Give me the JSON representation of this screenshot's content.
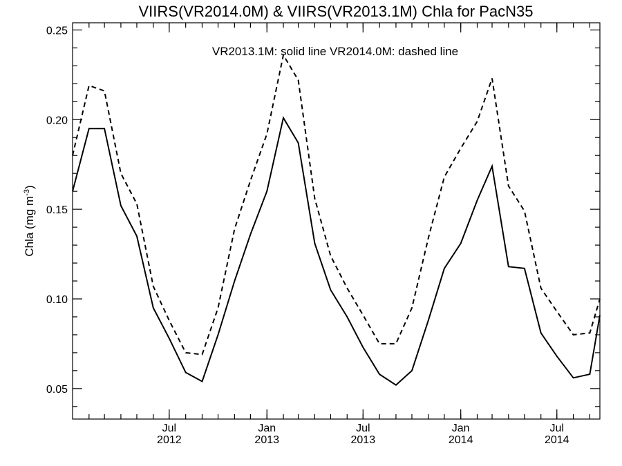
{
  "chart_data": {
    "type": "line",
    "title": "VIIRS(VR2014.0M) & VIIRS(VR2013.1M)  Chla for PacN35",
    "annotation": "VR2013.1M: solid line   VR2014.0M: dashed line",
    "ylabel": {
      "prefix": "Chla (mg m",
      "superscript": "-3",
      "suffix": ")"
    },
    "ylim": [
      0.033,
      0.254
    ],
    "xlim": [
      "2012-01-01",
      "2014-09-20"
    ],
    "y_ticks": [
      {
        "value": 0.05,
        "label": "0.05"
      },
      {
        "value": 0.1,
        "label": "0.10"
      },
      {
        "value": 0.15,
        "label": "0.15"
      },
      {
        "value": 0.2,
        "label": "0.20"
      },
      {
        "value": 0.25,
        "label": "0.25"
      }
    ],
    "x_ticks": [
      {
        "date": "2012-07-01",
        "label": "Jul",
        "year": "2012"
      },
      {
        "date": "2013-01-01",
        "label": "Jan",
        "year": "2013"
      },
      {
        "date": "2013-07-01",
        "label": "Jul",
        "year": "2013"
      },
      {
        "date": "2014-01-01",
        "label": "Jan",
        "year": "2014"
      },
      {
        "date": "2014-07-01",
        "label": "Jul",
        "year": "2014"
      }
    ],
    "series": [
      {
        "style": "solid",
        "points": [
          [
            "2012-01-01",
            0.16
          ],
          [
            "2012-02-01",
            0.195
          ],
          [
            "2012-03-01",
            0.195
          ],
          [
            "2012-04-01",
            0.152
          ],
          [
            "2012-05-01",
            0.135
          ],
          [
            "2012-06-01",
            0.095
          ],
          [
            "2012-07-01",
            0.078
          ],
          [
            "2012-08-01",
            0.059
          ],
          [
            "2012-09-01",
            0.054
          ],
          [
            "2012-10-01",
            0.08
          ],
          [
            "2012-11-01",
            0.11
          ],
          [
            "2012-12-01",
            0.136
          ],
          [
            "2013-01-01",
            0.16
          ],
          [
            "2013-02-01",
            0.201
          ],
          [
            "2013-03-01",
            0.187
          ],
          [
            "2013-04-01",
            0.131
          ],
          [
            "2013-05-01",
            0.105
          ],
          [
            "2013-06-01",
            0.09
          ],
          [
            "2013-07-01",
            0.073
          ],
          [
            "2013-08-01",
            0.058
          ],
          [
            "2013-09-01",
            0.052
          ],
          [
            "2013-10-01",
            0.06
          ],
          [
            "2013-11-01",
            0.088
          ],
          [
            "2013-12-01",
            0.117
          ],
          [
            "2014-01-01",
            0.131
          ],
          [
            "2014-02-01",
            0.155
          ],
          [
            "2014-03-01",
            0.174
          ],
          [
            "2014-04-01",
            0.118
          ],
          [
            "2014-05-01",
            0.117
          ],
          [
            "2014-06-01",
            0.081
          ],
          [
            "2014-07-01",
            0.068
          ],
          [
            "2014-08-01",
            0.056
          ],
          [
            "2014-09-01",
            0.058
          ],
          [
            "2014-09-20",
            0.091
          ]
        ]
      },
      {
        "style": "dashed",
        "points": [
          [
            "2012-01-01",
            0.18
          ],
          [
            "2012-02-01",
            0.219
          ],
          [
            "2012-03-01",
            0.216
          ],
          [
            "2012-04-01",
            0.17
          ],
          [
            "2012-05-01",
            0.153
          ],
          [
            "2012-06-01",
            0.107
          ],
          [
            "2012-07-01",
            0.088
          ],
          [
            "2012-08-01",
            0.07
          ],
          [
            "2012-09-01",
            0.069
          ],
          [
            "2012-10-01",
            0.095
          ],
          [
            "2012-11-01",
            0.139
          ],
          [
            "2012-12-01",
            0.166
          ],
          [
            "2013-01-01",
            0.192
          ],
          [
            "2013-02-01",
            0.236
          ],
          [
            "2013-03-01",
            0.222
          ],
          [
            "2013-04-01",
            0.156
          ],
          [
            "2013-05-01",
            0.124
          ],
          [
            "2013-06-01",
            0.106
          ],
          [
            "2013-07-01",
            0.091
          ],
          [
            "2013-08-01",
            0.075
          ],
          [
            "2013-09-01",
            0.075
          ],
          [
            "2013-10-01",
            0.095
          ],
          [
            "2013-11-01",
            0.134
          ],
          [
            "2013-12-01",
            0.168
          ],
          [
            "2014-01-01",
            0.184
          ],
          [
            "2014-02-01",
            0.199
          ],
          [
            "2014-03-01",
            0.223
          ],
          [
            "2014-04-01",
            0.163
          ],
          [
            "2014-05-01",
            0.149
          ],
          [
            "2014-06-01",
            0.106
          ],
          [
            "2014-07-01",
            0.093
          ],
          [
            "2014-08-01",
            0.08
          ],
          [
            "2014-09-01",
            0.081
          ],
          [
            "2014-09-20",
            0.1
          ]
        ]
      }
    ],
    "grid": false,
    "colors": {
      "line": "#000000",
      "background": "#ffffff"
    }
  }
}
